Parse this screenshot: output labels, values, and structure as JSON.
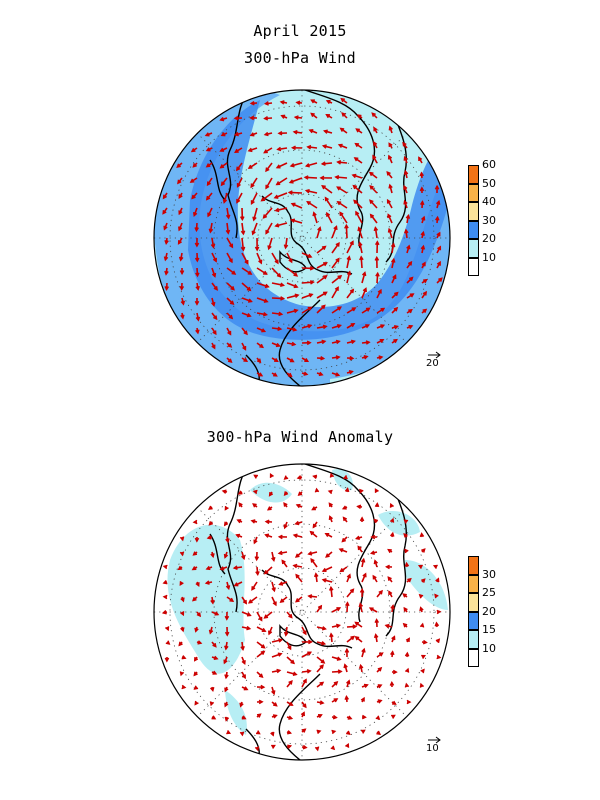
{
  "title": "April 2015",
  "panels": [
    {
      "subtitle": "300-hPa Wind",
      "ref_vector_label": "20",
      "colorbar": {
        "levels": [
          "10",
          "20",
          "30",
          "40",
          "50",
          "60"
        ],
        "colors": [
          "#ffffff",
          "#b7eef4",
          "#3f8cf0",
          "#fbe39a",
          "#f9b248",
          "#f27316"
        ]
      }
    },
    {
      "subtitle": "300-hPa Wind Anomaly",
      "ref_vector_label": "10",
      "colorbar": {
        "levels": [
          "10",
          "15",
          "20",
          "25",
          "30"
        ],
        "colors": [
          "#ffffff",
          "#b7eef4",
          "#3f8cf0",
          "#fbe39a",
          "#f9b248",
          "#f27316"
        ]
      }
    }
  ],
  "colors": {
    "light_cyan": "#b7eef4",
    "mid_blue": "#6fb6f5",
    "deep_blue": "#3f8cf0",
    "arrow_red": "#cc0000",
    "coast": "#000000"
  }
}
